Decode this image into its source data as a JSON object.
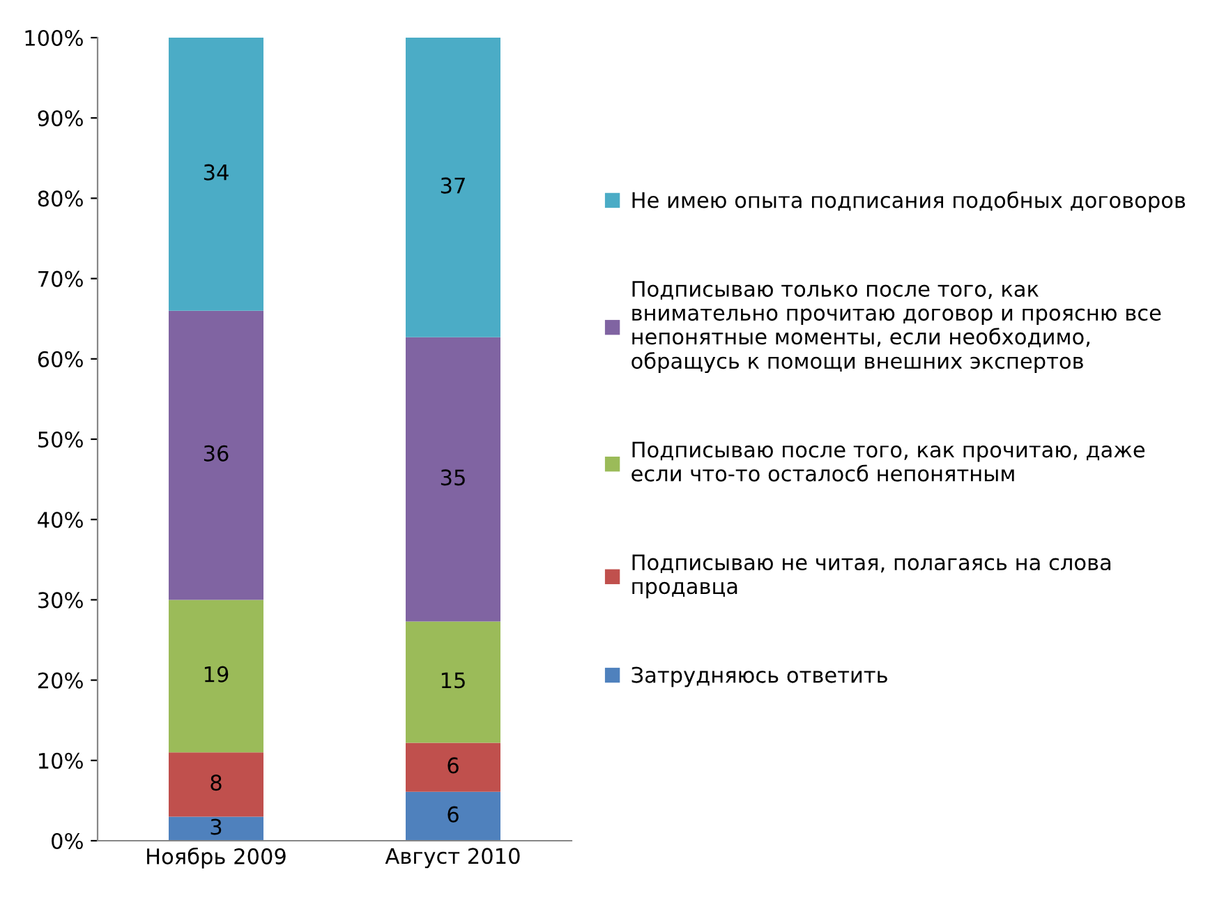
{
  "chart_data": {
    "type": "bar",
    "stacked": true,
    "categories": [
      "Ноябрь 2009",
      "Август 2010"
    ],
    "series": [
      {
        "name": "Затрудняюсь ответить",
        "color": "#4f81bd",
        "values": [
          3,
          6.1
        ],
        "value_labels": [
          "3",
          "6"
        ]
      },
      {
        "name": "Подписываю не читая, полагаясь на слова продавца",
        "color": "#c0504d",
        "values": [
          8,
          6.1
        ],
        "value_labels": [
          "8",
          "6"
        ]
      },
      {
        "name": "Подписываю после того, как прочитаю, даже если что-то осталосб непонятным",
        "color": "#9bbb59",
        "values": [
          19,
          15.1
        ],
        "value_labels": [
          "19",
          "15"
        ]
      },
      {
        "name": "Подписываю только после того, как внимательно прочитаю договор и проясню все непонятные моменты, если необходимо, обращусь к помощи внешних экспертов",
        "color": "#8064a2",
        "values": [
          36,
          35.4
        ],
        "value_labels": [
          "36",
          "35"
        ]
      },
      {
        "name": "Не имею опыта подписания подобных договоров",
        "color": "#4bacc6",
        "values": [
          34,
          37.3
        ],
        "value_labels": [
          "34",
          "37"
        ]
      }
    ],
    "ylim": [
      0,
      100
    ],
    "yticks": [
      {
        "value": 0,
        "label": "0%"
      },
      {
        "value": 10,
        "label": "10%"
      },
      {
        "value": 20,
        "label": "20%"
      },
      {
        "value": 30,
        "label": "30%"
      },
      {
        "value": 40,
        "label": "40%"
      },
      {
        "value": 50,
        "label": "50%"
      },
      {
        "value": 60,
        "label": "60%"
      },
      {
        "value": 70,
        "label": "70%"
      },
      {
        "value": 80,
        "label": "80%"
      },
      {
        "value": 90,
        "label": "90%"
      },
      {
        "value": 100,
        "label": "100%"
      }
    ],
    "grid": false,
    "legend": "right"
  }
}
